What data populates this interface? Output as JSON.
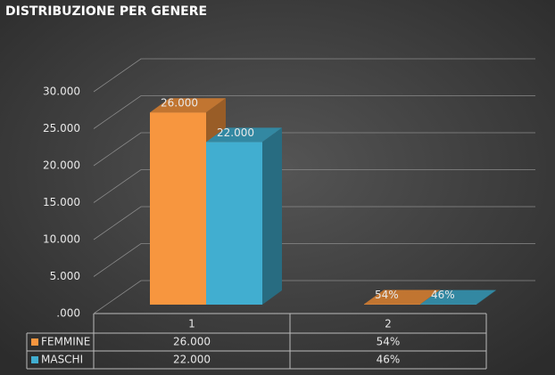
{
  "chart_data": {
    "type": "bar",
    "title": "DISTRIBUZIONE PER GENERE",
    "categories": [
      "1",
      "2"
    ],
    "series": [
      {
        "name": "FEMMINE",
        "color": "#f7963f",
        "values": [
          26000,
          54
        ],
        "value_labels": [
          "26.000",
          "54%"
        ]
      },
      {
        "name": "MASCHI",
        "color": "#41aed0",
        "values": [
          22000,
          46
        ],
        "value_labels": [
          "22.000",
          "46%"
        ]
      }
    ],
    "ylim": [
      0,
      30000
    ],
    "yticks": [
      {
        "value": 0,
        "label": ".000"
      },
      {
        "value": 5000,
        "label": "5.000"
      },
      {
        "value": 10000,
        "label": "10.000"
      },
      {
        "value": 15000,
        "label": "15.000"
      },
      {
        "value": 20000,
        "label": "20.000"
      },
      {
        "value": 25000,
        "label": "25.000"
      },
      {
        "value": 30000,
        "label": "30.000"
      }
    ],
    "grid": true
  }
}
